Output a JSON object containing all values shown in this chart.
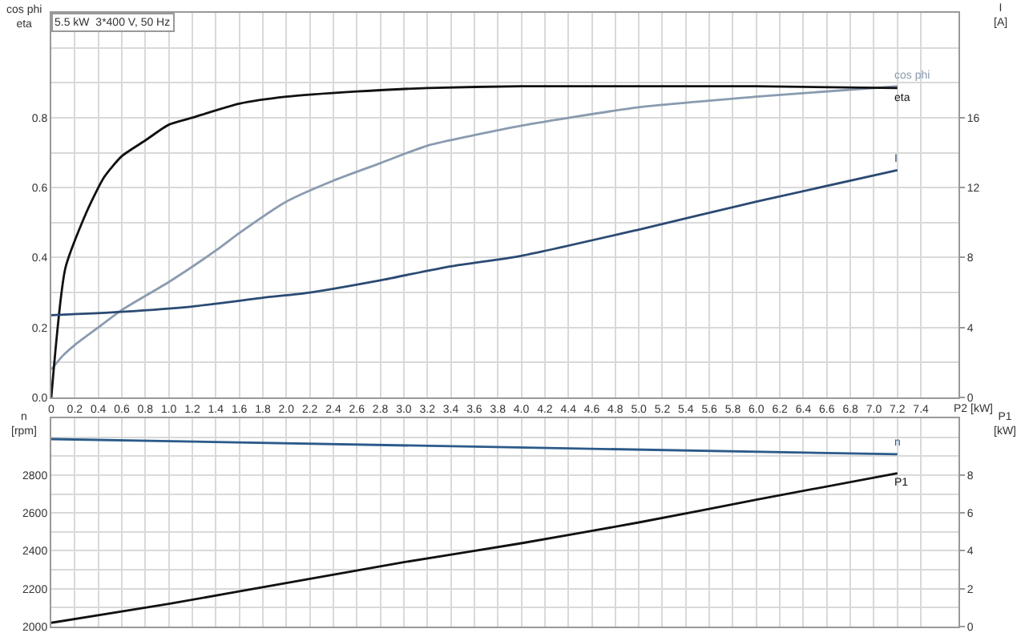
{
  "chart_data": [
    {
      "type": "line",
      "title": "5.5 kW  3*400 V, 50 Hz",
      "xlabel": "P2 [kW]",
      "ylabel": "cos phi\neta",
      "y2label": "I\n[A]",
      "xlim": [
        0,
        7.72
      ],
      "xticks": [
        0,
        0.2,
        0.4,
        0.6,
        0.8,
        {
          "value": 1,
          "label": "1.0"
        },
        1.2,
        1.4,
        1.6,
        1.8,
        {
          "value": 2,
          "label": "2.0"
        },
        2.2,
        2.4,
        2.6,
        2.8,
        {
          "value": 3,
          "label": "3.0"
        },
        3.2,
        3.4,
        3.6,
        3.8,
        {
          "value": 4,
          "label": "4.0"
        },
        4.2,
        4.4,
        4.6,
        4.8,
        {
          "value": 5,
          "label": "5.0"
        },
        5.2,
        5.4,
        5.6,
        5.8,
        {
          "value": 6,
          "label": "6.0"
        },
        6.2,
        6.4,
        6.6,
        6.8,
        {
          "value": 7,
          "label": "7.0"
        },
        7.2,
        7.4
      ],
      "ylim": [
        0,
        1.1
      ],
      "yticks": [
        {
          "value": 0,
          "label": "0.0"
        },
        {
          "value": 0.1,
          "label": null
        },
        0.2,
        {
          "value": 0.3,
          "label": null
        },
        0.4,
        {
          "value": 0.5,
          "label": null
        },
        0.6,
        {
          "value": 0.7,
          "label": null
        },
        0.8,
        {
          "value": 0.9,
          "label": null
        },
        {
          "value": 1,
          "label": null
        }
      ],
      "y2lim": [
        0,
        22
      ],
      "y2ticks": [
        0,
        4,
        8,
        12,
        16
      ],
      "grid": true,
      "legend": false,
      "series": [
        {
          "name": "cos phi",
          "color": "#8a9bb0",
          "x": [
            0,
            0.1,
            0.2,
            0.4,
            0.6,
            1.0,
            1.4,
            1.6,
            2.0,
            2.4,
            2.8,
            3.2,
            3.6,
            4.0,
            5.0,
            6.0,
            7.0,
            7.2
          ],
          "values": [
            0.08,
            0.12,
            0.15,
            0.2,
            0.25,
            0.33,
            0.42,
            0.47,
            0.56,
            0.62,
            0.67,
            0.72,
            0.75,
            0.777,
            0.83,
            0.86,
            0.885,
            0.89
          ]
        },
        {
          "name": "eta",
          "color": "#111111",
          "x": [
            0,
            0.12,
            0.3,
            0.45,
            0.6,
            0.8,
            1.0,
            1.2,
            1.6,
            2.0,
            2.6,
            3.2,
            4.0,
            5.0,
            6.0,
            7.2
          ],
          "values": [
            0,
            0.37,
            0.53,
            0.63,
            0.69,
            0.735,
            0.78,
            0.8,
            0.84,
            0.86,
            0.875,
            0.885,
            0.89,
            0.89,
            0.89,
            0.885
          ]
        },
        {
          "name": "I",
          "color": "#2b4a73",
          "axis": "y2",
          "x": [
            0,
            0.6,
            1.2,
            1.8,
            2.2,
            2.8,
            3.4,
            4.0,
            5.0,
            6.0,
            7.2
          ],
          "values": [
            4.7,
            4.9,
            5.2,
            5.7,
            6.0,
            6.7,
            7.5,
            8.1,
            9.6,
            11.2,
            13.0
          ]
        }
      ]
    },
    {
      "type": "line",
      "ylabel": "n\n[rpm]",
      "y2label": "P1\n[kW]",
      "xlim": [
        0,
        7.72
      ],
      "xticks": [
        0,
        0.2,
        0.4,
        0.6,
        0.8,
        1,
        1.2,
        1.4,
        1.6,
        1.8,
        2,
        2.2,
        2.4,
        2.6,
        2.8,
        3,
        3.2,
        3.4,
        3.6,
        3.8,
        4,
        4.2,
        4.4,
        4.6,
        4.8,
        5,
        5.2,
        5.4,
        5.6,
        5.8,
        6,
        6.2,
        6.4,
        6.6,
        6.8,
        7,
        7.2,
        7.4
      ],
      "ylim": [
        2000,
        3100
      ],
      "yticks": [
        2000,
        {
          "value": 2100,
          "label": null
        },
        2200,
        {
          "value": 2300,
          "label": null
        },
        2400,
        {
          "value": 2500,
          "label": null
        },
        2600,
        {
          "value": 2700,
          "label": null
        },
        2800,
        {
          "value": 2900,
          "label": null
        },
        {
          "value": 3000,
          "label": null
        }
      ],
      "y2lim": [
        0,
        11
      ],
      "y2ticks": [
        0,
        2,
        4,
        6,
        8
      ],
      "grid": true,
      "legend": false,
      "tick_labels": "y",
      "series": [
        {
          "name": "n",
          "color": "#2b5a8a",
          "x": [
            0,
            3.6,
            7.2
          ],
          "values": [
            2990,
            2950,
            2910
          ]
        },
        {
          "name": "P1",
          "color": "#111111",
          "axis": "y2",
          "x": [
            0,
            1,
            2,
            3,
            4,
            5,
            6,
            7.2
          ],
          "values": [
            0.2,
            1.2,
            2.3,
            3.4,
            4.4,
            5.5,
            6.7,
            8.1
          ]
        }
      ]
    }
  ]
}
